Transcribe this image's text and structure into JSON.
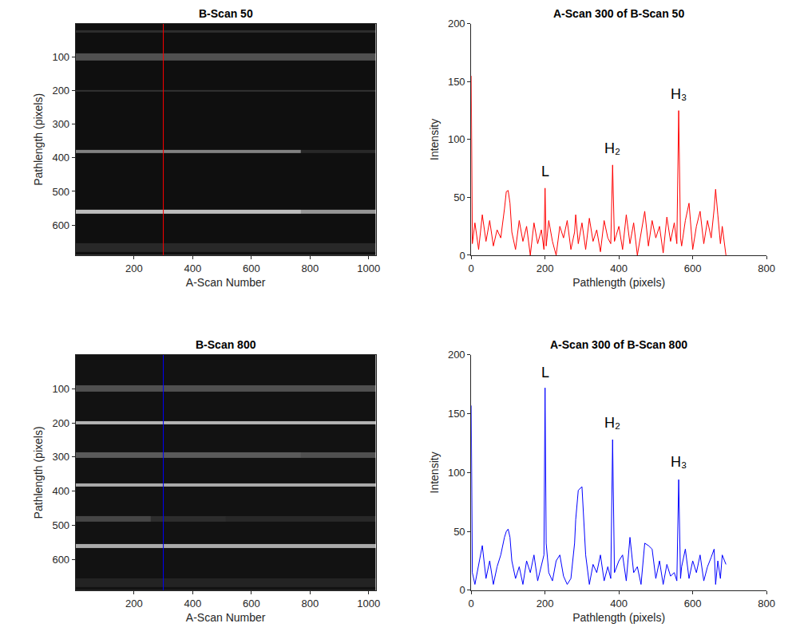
{
  "chart_data": [
    {
      "type": "heatmap",
      "title": "B-Scan 50",
      "x_label": "A-Scan Number",
      "y_label": "Pathlength (pixels)",
      "x_edges": [
        1,
        256,
        512,
        768,
        1024
      ],
      "y_edges": [
        1,
        20,
        26,
        90,
        110,
        197,
        204,
        377,
        386,
        555,
        567,
        655,
        680,
        690
      ],
      "cells": [
        [
          15,
          15,
          15,
          15
        ],
        [
          45,
          45,
          45,
          45
        ],
        [
          15,
          15,
          15,
          15
        ],
        [
          80,
          80,
          80,
          80
        ],
        [
          15,
          15,
          15,
          15
        ],
        [
          50,
          50,
          50,
          50
        ],
        [
          15,
          15,
          15,
          15
        ],
        [
          130,
          130,
          130,
          40
        ],
        [
          15,
          15,
          15,
          15
        ],
        [
          190,
          190,
          190,
          150
        ],
        [
          15,
          15,
          15,
          15
        ],
        [
          40,
          40,
          40,
          40
        ],
        [
          15,
          15,
          15,
          15
        ]
      ],
      "zlim": [
        0,
        255
      ],
      "xlim": [
        1,
        1024
      ],
      "ylim": [
        690,
        1
      ],
      "xticks": [
        200,
        400,
        600,
        800,
        1000
      ],
      "yticks": [
        100,
        200,
        300,
        400,
        500,
        600
      ],
      "marker_x": 300,
      "color": "#ff0000",
      "grid": false
    },
    {
      "type": "line",
      "title": "A-Scan 300 of B-Scan 50",
      "x_label": "Pathlength (pixels)",
      "y_label": "Intensity",
      "x": [
        0,
        3,
        10,
        20,
        30,
        40,
        50,
        60,
        70,
        80,
        90,
        95,
        100,
        105,
        110,
        120,
        130,
        140,
        150,
        160,
        170,
        180,
        190,
        197,
        200,
        203,
        210,
        220,
        230,
        240,
        250,
        260,
        270,
        280,
        283,
        290,
        300,
        310,
        320,
        330,
        340,
        350,
        360,
        370,
        378,
        383,
        388,
        400,
        410,
        420,
        430,
        440,
        450,
        460,
        470,
        480,
        490,
        500,
        510,
        520,
        530,
        540,
        550,
        557,
        562,
        567,
        570,
        580,
        590,
        600,
        610,
        620,
        630,
        640,
        650,
        658,
        662,
        668,
        675,
        680,
        690
      ],
      "values": [
        155,
        10,
        28,
        5,
        35,
        12,
        30,
        8,
        22,
        15,
        40,
        55,
        56,
        45,
        20,
        5,
        30,
        12,
        25,
        0,
        28,
        10,
        22,
        5,
        58,
        8,
        30,
        12,
        0,
        25,
        15,
        30,
        5,
        20,
        35,
        10,
        28,
        5,
        32,
        12,
        22,
        3,
        30,
        15,
        10,
        78,
        12,
        25,
        5,
        35,
        10,
        28,
        0,
        20,
        38,
        8,
        30,
        15,
        25,
        2,
        33,
        12,
        28,
        10,
        125,
        15,
        8,
        30,
        45,
        5,
        25,
        38,
        10,
        30,
        15,
        40,
        57,
        35,
        10,
        25,
        0
      ],
      "color": "#ff0000",
      "xlim": [
        0,
        800
      ],
      "ylim": [
        0,
        200
      ],
      "xticks": [
        0,
        200,
        400,
        600,
        800
      ],
      "yticks": [
        0,
        50,
        100,
        150,
        200
      ],
      "grid": false,
      "annotations": [
        {
          "text": "L",
          "x": 200,
          "y": 64
        },
        {
          "text": "H₂",
          "x": 383,
          "y": 84
        },
        {
          "text": "H₃",
          "x": 562,
          "y": 131
        }
      ]
    },
    {
      "type": "heatmap",
      "title": "B-Scan 800",
      "x_label": "A-Scan Number",
      "y_label": "Pathlength (pixels)",
      "x_edges": [
        1,
        256,
        512,
        768,
        1024
      ],
      "y_edges": [
        1,
        90,
        108,
        196,
        205,
        287,
        303,
        377,
        386,
        472,
        490,
        555,
        566,
        655,
        680,
        690
      ],
      "cells": [
        [
          18,
          18,
          18,
          18
        ],
        [
          80,
          80,
          80,
          80
        ],
        [
          18,
          18,
          18,
          18
        ],
        [
          180,
          180,
          180,
          180
        ],
        [
          18,
          18,
          18,
          18
        ],
        [
          90,
          90,
          90,
          80
        ],
        [
          18,
          18,
          18,
          18
        ],
        [
          170,
          170,
          170,
          170
        ],
        [
          18,
          18,
          18,
          18
        ],
        [
          70,
          45,
          40,
          40
        ],
        [
          18,
          18,
          18,
          18
        ],
        [
          170,
          170,
          170,
          170
        ],
        [
          18,
          18,
          18,
          18
        ],
        [
          35,
          35,
          35,
          35
        ],
        [
          18,
          18,
          18,
          18
        ]
      ],
      "zlim": [
        0,
        255
      ],
      "xlim": [
        1,
        1024
      ],
      "ylim": [
        690,
        1
      ],
      "xticks": [
        200,
        400,
        600,
        800,
        1000
      ],
      "yticks": [
        100,
        200,
        300,
        400,
        500,
        600
      ],
      "marker_x": 300,
      "color": "#0000ff",
      "grid": false
    },
    {
      "type": "line",
      "title": "A-Scan 300 of B-Scan 800",
      "x_label": "Pathlength (pixels)",
      "y_label": "Intensity",
      "x": [
        0,
        3,
        10,
        20,
        30,
        40,
        50,
        60,
        70,
        80,
        90,
        95,
        100,
        105,
        110,
        120,
        130,
        140,
        150,
        160,
        170,
        180,
        190,
        197,
        200,
        203,
        210,
        220,
        230,
        240,
        250,
        260,
        270,
        280,
        283,
        290,
        300,
        310,
        320,
        330,
        340,
        350,
        360,
        370,
        378,
        383,
        388,
        400,
        410,
        420,
        430,
        440,
        450,
        460,
        470,
        480,
        490,
        500,
        510,
        520,
        530,
        540,
        550,
        557,
        562,
        567,
        570,
        580,
        590,
        600,
        610,
        620,
        630,
        640,
        650,
        658,
        662,
        668,
        675,
        680,
        690
      ],
      "values": [
        157,
        15,
        5,
        22,
        38,
        10,
        25,
        5,
        20,
        30,
        45,
        50,
        52,
        45,
        25,
        10,
        20,
        5,
        25,
        15,
        30,
        8,
        20,
        30,
        172,
        40,
        15,
        8,
        25,
        30,
        12,
        5,
        10,
        40,
        60,
        85,
        88,
        30,
        5,
        22,
        15,
        30,
        8,
        20,
        10,
        128,
        15,
        25,
        30,
        8,
        45,
        15,
        20,
        5,
        40,
        38,
        35,
        10,
        25,
        5,
        22,
        12,
        15,
        8,
        94,
        10,
        20,
        35,
        10,
        25,
        15,
        30,
        8,
        20,
        28,
        35,
        5,
        25,
        10,
        30,
        22
      ],
      "color": "#0000ff",
      "xlim": [
        0,
        800
      ],
      "ylim": [
        0,
        200
      ],
      "xticks": [
        0,
        200,
        400,
        600,
        800
      ],
      "yticks": [
        0,
        50,
        100,
        150,
        200
      ],
      "grid": false,
      "annotations": [
        {
          "text": "L",
          "x": 200,
          "y": 177
        },
        {
          "text": "H₂",
          "x": 383,
          "y": 134
        },
        {
          "text": "H₃",
          "x": 562,
          "y": 101
        }
      ]
    }
  ]
}
